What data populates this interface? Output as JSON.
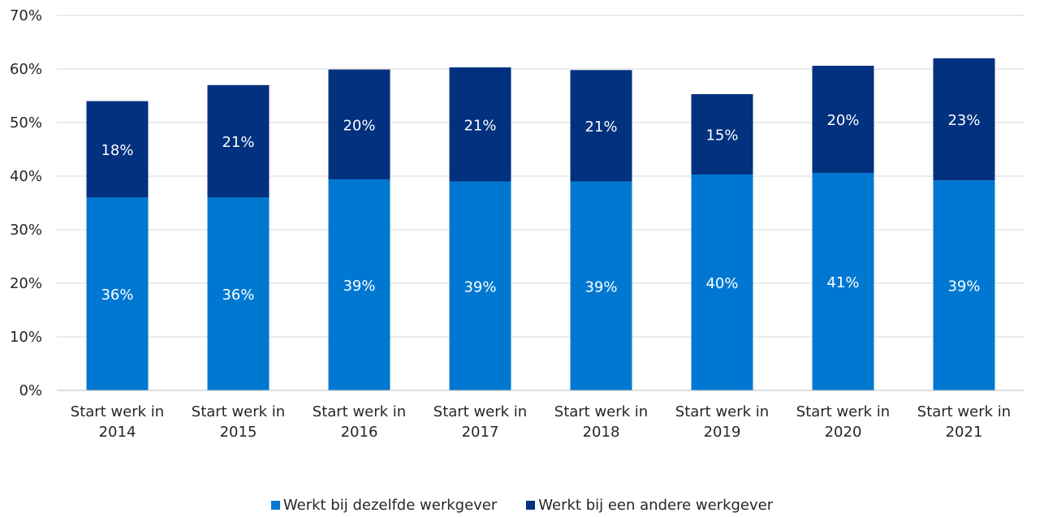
{
  "chart_data": {
    "type": "bar",
    "stacked": true,
    "categories": [
      [
        "Start werk in",
        "2014"
      ],
      [
        "Start werk in",
        "2015"
      ],
      [
        "Start werk in",
        "2016"
      ],
      [
        "Start werk in",
        "2017"
      ],
      [
        "Start werk in",
        "2018"
      ],
      [
        "Start werk in",
        "2019"
      ],
      [
        "Start werk in",
        "2020"
      ],
      [
        "Start werk in",
        "2021"
      ]
    ],
    "series": [
      {
        "name": "Werkt bij dezelfde werkgever",
        "color": "#0078d2",
        "values": [
          36,
          36,
          39.4,
          39,
          39,
          40.3,
          40.6,
          39.2
        ],
        "labels": [
          "36%",
          "36%",
          "39%",
          "39%",
          "39%",
          "40%",
          "41%",
          "39%"
        ]
      },
      {
        "name": "Werkt bij een andere werkgever",
        "color": "#01317f",
        "values": [
          18,
          21,
          20.5,
          21.3,
          20.8,
          15,
          20,
          22.8
        ],
        "labels": [
          "18%",
          "21%",
          "20%",
          "21%",
          "21%",
          "15%",
          "20%",
          "23%"
        ]
      }
    ],
    "ylim": [
      0,
      70
    ],
    "yticks": [
      "0%",
      "10%",
      "20%",
      "30%",
      "40%",
      "50%",
      "60%",
      "70%"
    ],
    "grid": true,
    "legend": "bottom"
  }
}
